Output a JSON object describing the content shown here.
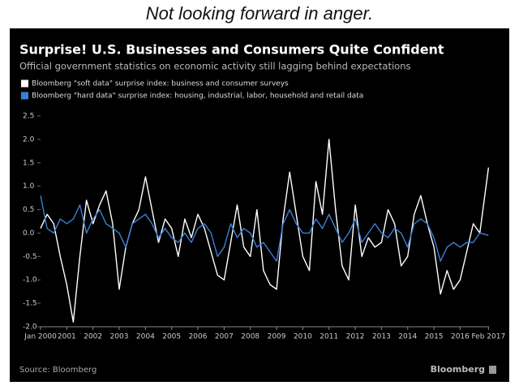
{
  "caption": "Not looking forward in anger.",
  "chart_data": {
    "type": "line",
    "title": "Surprise! U.S. Businesses and Consumers Quite Confident",
    "subtitle": "Official government statistics on economic activity still lagging behind expectations",
    "source": "Source: Bloomberg",
    "brand": "Bloomberg",
    "x": [
      2000,
      2000.25,
      2000.5,
      2000.75,
      2001,
      2001.25,
      2001.5,
      2001.75,
      2002,
      2002.25,
      2002.5,
      2002.75,
      2003,
      2003.25,
      2003.5,
      2003.75,
      2004,
      2004.25,
      2004.5,
      2004.75,
      2005,
      2005.25,
      2005.5,
      2005.75,
      2006,
      2006.25,
      2006.5,
      2006.75,
      2007,
      2007.25,
      2007.5,
      2007.75,
      2008,
      2008.25,
      2008.5,
      2008.75,
      2009,
      2009.25,
      2009.5,
      2009.75,
      2010,
      2010.25,
      2010.5,
      2010.75,
      2011,
      2011.25,
      2011.5,
      2011.75,
      2012,
      2012.25,
      2012.5,
      2012.75,
      2013,
      2013.25,
      2013.5,
      2013.75,
      2014,
      2014.25,
      2014.5,
      2014.75,
      2015,
      2015.25,
      2015.5,
      2015.75,
      2016,
      2016.25,
      2016.5,
      2016.75,
      2017.08
    ],
    "series": [
      {
        "name": "Bloomberg \"soft data\" surprise index: business and consumer surveys",
        "color": "#ffffff",
        "values": [
          0.1,
          0.4,
          0.2,
          -0.5,
          -1.1,
          -1.9,
          -0.5,
          0.7,
          0.2,
          0.6,
          0.9,
          0.2,
          -1.2,
          -0.3,
          0.2,
          0.5,
          1.2,
          0.5,
          -0.2,
          0.3,
          0.1,
          -0.5,
          0.3,
          -0.1,
          0.4,
          0.1,
          -0.4,
          -0.9,
          -1.0,
          -0.2,
          0.6,
          -0.3,
          -0.5,
          0.5,
          -0.8,
          -1.1,
          -1.2,
          0.3,
          1.3,
          0.4,
          -0.5,
          -0.8,
          1.1,
          0.4,
          2.0,
          0.5,
          -0.7,
          -1.0,
          0.6,
          -0.5,
          -0.1,
          -0.3,
          -0.2,
          0.5,
          0.2,
          -0.7,
          -0.5,
          0.4,
          0.8,
          0.2,
          -0.3,
          -1.3,
          -0.8,
          -1.2,
          -1.0,
          -0.4,
          0.2,
          0.0,
          1.4
        ]
      },
      {
        "name": "Bloomberg \"hard data\" surprise index: housing, industrial, labor, household and retail data",
        "color": "#3a7fd5",
        "values": [
          0.8,
          0.1,
          0.0,
          0.3,
          0.2,
          0.3,
          0.6,
          0.0,
          0.3,
          0.5,
          0.2,
          0.1,
          0.0,
          -0.3,
          0.2,
          0.3,
          0.4,
          0.2,
          -0.1,
          0.1,
          -0.1,
          -0.2,
          0.0,
          -0.2,
          0.1,
          0.2,
          0.0,
          -0.5,
          -0.3,
          0.2,
          -0.1,
          0.1,
          0.0,
          -0.3,
          -0.2,
          -0.4,
          -0.6,
          0.2,
          0.5,
          0.2,
          0.0,
          0.0,
          0.3,
          0.1,
          0.4,
          0.1,
          -0.2,
          0.0,
          0.3,
          -0.2,
          0.0,
          0.2,
          0.0,
          -0.1,
          0.1,
          0.0,
          -0.3,
          0.2,
          0.3,
          0.2,
          -0.1,
          -0.6,
          -0.3,
          -0.2,
          -0.3,
          -0.2,
          -0.2,
          0.0,
          -0.05
        ]
      }
    ],
    "xlim": [
      2000,
      2017.1
    ],
    "xticks": [
      {
        "value": 2000,
        "label": "Jan 2000"
      },
      2001,
      2002,
      2003,
      2004,
      2005,
      2006,
      2007,
      2008,
      2009,
      2010,
      2011,
      2012,
      2013,
      2014,
      2015,
      2016,
      {
        "value": 2017.08,
        "label": "Feb 2017"
      }
    ],
    "ylim": [
      -2.0,
      2.5
    ],
    "yticks": [
      2.5,
      {
        "value": 2.0,
        "label": "2.0"
      },
      1.5,
      {
        "value": 1.0,
        "label": "1.0"
      },
      0.5,
      {
        "value": 0.0,
        "label": "0.0"
      },
      -0.5,
      {
        "value": -1.0,
        "label": "-1.0"
      },
      -1.5,
      {
        "value": -2.0,
        "label": "-2.0"
      }
    ],
    "grid": false
  }
}
